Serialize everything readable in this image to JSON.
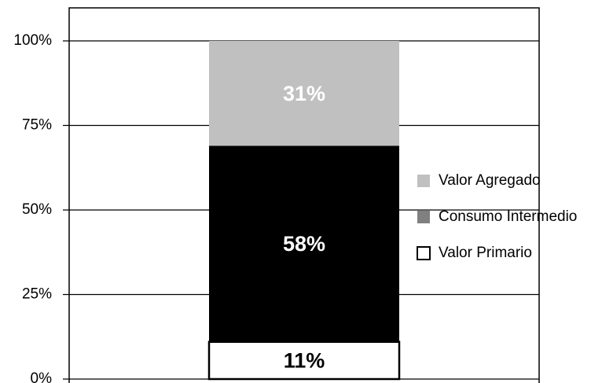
{
  "chart_data": {
    "type": "stacked_bar",
    "categories": [
      null
    ],
    "series": [
      {
        "name": "Valor Primario",
        "color": "#ffffff",
        "stroke": "#000000",
        "legend_color": "#ffffff",
        "label_color": "#000000",
        "values": [
          11
        ],
        "value_labels": [
          "11%"
        ]
      },
      {
        "name": "Consumo Intermedio",
        "color": "#000000",
        "legend_color": "#808080",
        "label_color": "#ffffff",
        "values": [
          58
        ],
        "value_labels": [
          "58%"
        ]
      },
      {
        "name": "Valor Agregado",
        "color": "#c0c0c0",
        "legend_color": "#c0c0c0",
        "label_color": "#ffffff",
        "values": [
          31
        ],
        "value_labels": [
          "31%"
        ]
      }
    ],
    "ylim": [
      0,
      100
    ],
    "yticks": [
      {
        "value": 0,
        "label": "0%"
      },
      {
        "value": 25,
        "label": "25%"
      },
      {
        "value": 50,
        "label": "50%"
      },
      {
        "value": 75,
        "label": "75%"
      },
      {
        "value": 100,
        "label": "100%"
      }
    ],
    "grid": true,
    "legend": "right"
  }
}
